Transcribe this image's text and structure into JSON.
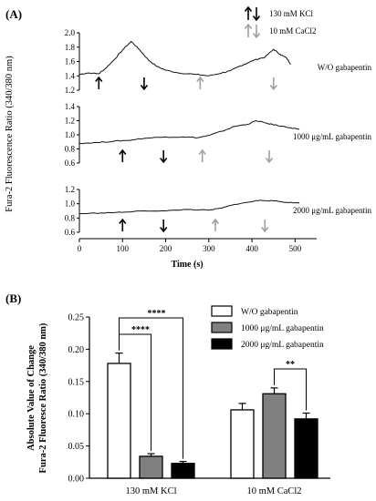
{
  "panel_a": {
    "label": "(A)",
    "legend": {
      "kcl": "130 mM KCl",
      "cacl2": "10 mM CaCl2"
    },
    "kcl_color": "#000000",
    "cacl2_color": "#a0a0a0",
    "chart_data": [
      {
        "type": "line",
        "annotation": "W/O gabapentin",
        "ylim": [
          1.2,
          2.0
        ],
        "yticks": [
          "1.2",
          "1.4",
          "1.6",
          "1.8",
          "2.0"
        ],
        "points": [
          [
            0,
            1.42
          ],
          [
            20,
            1.44
          ],
          [
            45,
            1.43
          ],
          [
            60,
            1.5
          ],
          [
            80,
            1.62
          ],
          [
            100,
            1.76
          ],
          [
            120,
            1.88
          ],
          [
            140,
            1.76
          ],
          [
            160,
            1.62
          ],
          [
            180,
            1.53
          ],
          [
            200,
            1.48
          ],
          [
            230,
            1.44
          ],
          [
            270,
            1.42
          ],
          [
            300,
            1.4
          ],
          [
            330,
            1.44
          ],
          [
            350,
            1.47
          ],
          [
            370,
            1.53
          ],
          [
            390,
            1.58
          ],
          [
            410,
            1.63
          ],
          [
            430,
            1.66
          ],
          [
            450,
            1.77
          ],
          [
            465,
            1.7
          ],
          [
            480,
            1.65
          ],
          [
            490,
            1.56
          ]
        ],
        "kcl_arrows": [
          {
            "x": 45,
            "dir": "up"
          },
          {
            "x": 150,
            "dir": "down"
          }
        ],
        "cacl2_arrows": [
          {
            "x": 280,
            "dir": "up"
          },
          {
            "x": 450,
            "dir": "down"
          }
        ]
      },
      {
        "type": "line",
        "annotation": "1000 μg/mL gabapentin",
        "ylim": [
          0.6,
          1.4
        ],
        "yticks": [
          "0.6",
          "0.8",
          "1.0",
          "1.2",
          "1.4"
        ],
        "points": [
          [
            0,
            0.88
          ],
          [
            40,
            0.89
          ],
          [
            80,
            0.91
          ],
          [
            110,
            0.92
          ],
          [
            150,
            0.95
          ],
          [
            200,
            0.97
          ],
          [
            240,
            0.97
          ],
          [
            275,
            0.96
          ],
          [
            300,
            0.99
          ],
          [
            330,
            1.05
          ],
          [
            360,
            1.12
          ],
          [
            390,
            1.15
          ],
          [
            410,
            1.2
          ],
          [
            430,
            1.17
          ],
          [
            460,
            1.13
          ],
          [
            490,
            1.1
          ],
          [
            510,
            1.08
          ]
        ],
        "kcl_arrows": [
          {
            "x": 100,
            "dir": "up"
          },
          {
            "x": 195,
            "dir": "down"
          }
        ],
        "cacl2_arrows": [
          {
            "x": 285,
            "dir": "up"
          },
          {
            "x": 440,
            "dir": "down"
          }
        ]
      },
      {
        "type": "line",
        "annotation": "2000 μg/mL gabapentin",
        "ylim": [
          0.6,
          1.2
        ],
        "yticks": [
          "0.6",
          "0.8",
          "1.0",
          "1.2"
        ],
        "points": [
          [
            0,
            0.86
          ],
          [
            50,
            0.87
          ],
          [
            100,
            0.88
          ],
          [
            150,
            0.9
          ],
          [
            200,
            0.9
          ],
          [
            250,
            0.92
          ],
          [
            300,
            0.91
          ],
          [
            330,
            0.94
          ],
          [
            360,
            0.99
          ],
          [
            390,
            1.02
          ],
          [
            420,
            1.05
          ],
          [
            450,
            1.04
          ],
          [
            480,
            1.02
          ],
          [
            510,
            1.01
          ]
        ],
        "kcl_arrows": [
          {
            "x": 100,
            "dir": "up"
          },
          {
            "x": 195,
            "dir": "down"
          }
        ],
        "cacl2_arrows": [
          {
            "x": 315,
            "dir": "up"
          },
          {
            "x": 430,
            "dir": "down"
          }
        ]
      }
    ],
    "ylabel": "Fura-2 Fluorescence Ratio (340/380 nm)",
    "xlabel": "Time (s)",
    "xlim": [
      0,
      550
    ],
    "xticks": [
      "0",
      "100",
      "200",
      "300",
      "400",
      "500"
    ]
  },
  "panel_b": {
    "label": "(B)",
    "legend": [
      "W/O gabapentin",
      "1000 μg/mL gabapentin",
      "2000 μg/mL gabapentin"
    ],
    "ylabel_line1": "Absolute Value of Change",
    "ylabel_line2": "Fura-2 Fluoresce Ratio (340/380 nm)",
    "colors": [
      "#ffffff",
      "#808080",
      "#000000"
    ],
    "sig": [
      {
        "from": 0,
        "to": 1,
        "group": 0,
        "label": "****"
      },
      {
        "from": 0,
        "to": 2,
        "group": 0,
        "label": "****"
      },
      {
        "from": 1,
        "to": 2,
        "group": 1,
        "label": "**"
      }
    ],
    "chart_data": {
      "type": "bar",
      "categories": [
        "130 mM KCl",
        "10 mM CaCl2"
      ],
      "series": [
        {
          "name": "W/O gabapentin",
          "values": [
            0.178,
            0.106
          ],
          "errors": [
            0.016,
            0.01
          ]
        },
        {
          "name": "1000 μg/mL gabapentin",
          "values": [
            0.034,
            0.131
          ],
          "errors": [
            0.004,
            0.009
          ]
        },
        {
          "name": "2000 μg/mL gabapentin",
          "values": [
            0.023,
            0.092
          ],
          "errors": [
            0.003,
            0.009
          ]
        }
      ],
      "ylim": [
        0,
        0.25
      ],
      "yticks": [
        "0.00",
        "0.05",
        "0.10",
        "0.15",
        "0.20",
        "0.25"
      ]
    }
  }
}
